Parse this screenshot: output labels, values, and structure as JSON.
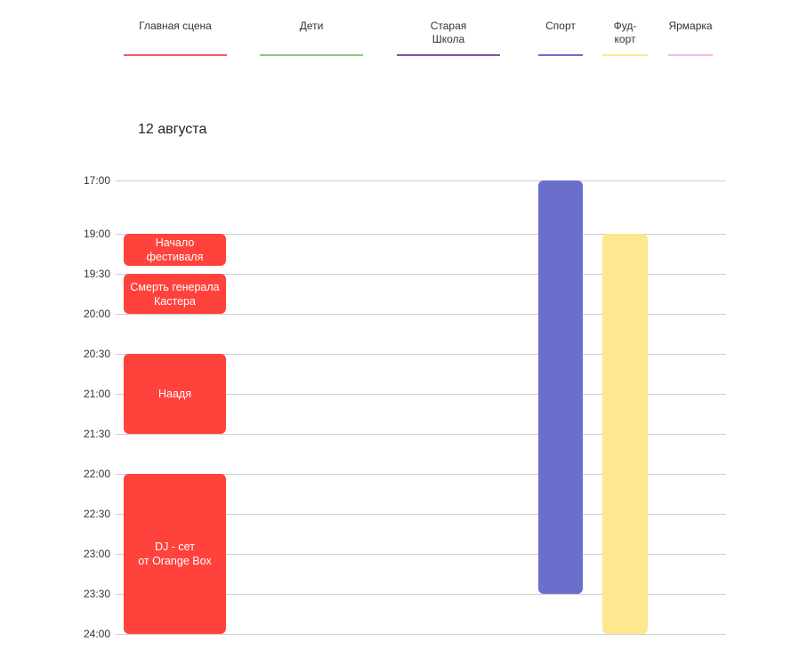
{
  "stages": [
    {
      "label": "Главная сцена",
      "color": "#f25c54"
    },
    {
      "label": "Дети",
      "color": "#8cc97a"
    },
    {
      "label": "Старая\nШкола",
      "color": "#7e57a8"
    },
    {
      "label": "Спорт",
      "color": "#6b6fcc"
    },
    {
      "label": "Фуд-\nкорт",
      "color": "#fde78f"
    },
    {
      "label": "Ярмарка",
      "color": "#f2b8ee"
    }
  ],
  "day": "12 августа",
  "times": [
    "17:00",
    "19:00",
    "19:30",
    "20:00",
    "20:30",
    "21:00",
    "21:30",
    "22:00",
    "22:30",
    "23:00",
    "23:30",
    "24:00"
  ],
  "events": [
    {
      "label": "Начало\nфестиваля",
      "stage": "Главная сцена",
      "start": "19:00",
      "end": "19:25",
      "color": "#ff423c"
    },
    {
      "label": "Смерть генерала\nКастера",
      "stage": "Главная сцена",
      "start": "19:30",
      "end": "20:00",
      "color": "#ff423c"
    },
    {
      "label": "Наадя",
      "stage": "Главная сцена",
      "start": "20:30",
      "end": "21:30",
      "color": "#ff423c"
    },
    {
      "label": "DJ - сет\nот Orange Box",
      "stage": "Главная сцена",
      "start": "22:00",
      "end": "24:00",
      "color": "#ff423c"
    },
    {
      "label": "",
      "stage": "Спорт",
      "start": "17:00",
      "end": "23:30",
      "color": "#6b6fcc"
    },
    {
      "label": "",
      "stage": "Фуд-\nкорт",
      "start": "19:00",
      "end": "24:00",
      "color": "#fde78f"
    }
  ]
}
